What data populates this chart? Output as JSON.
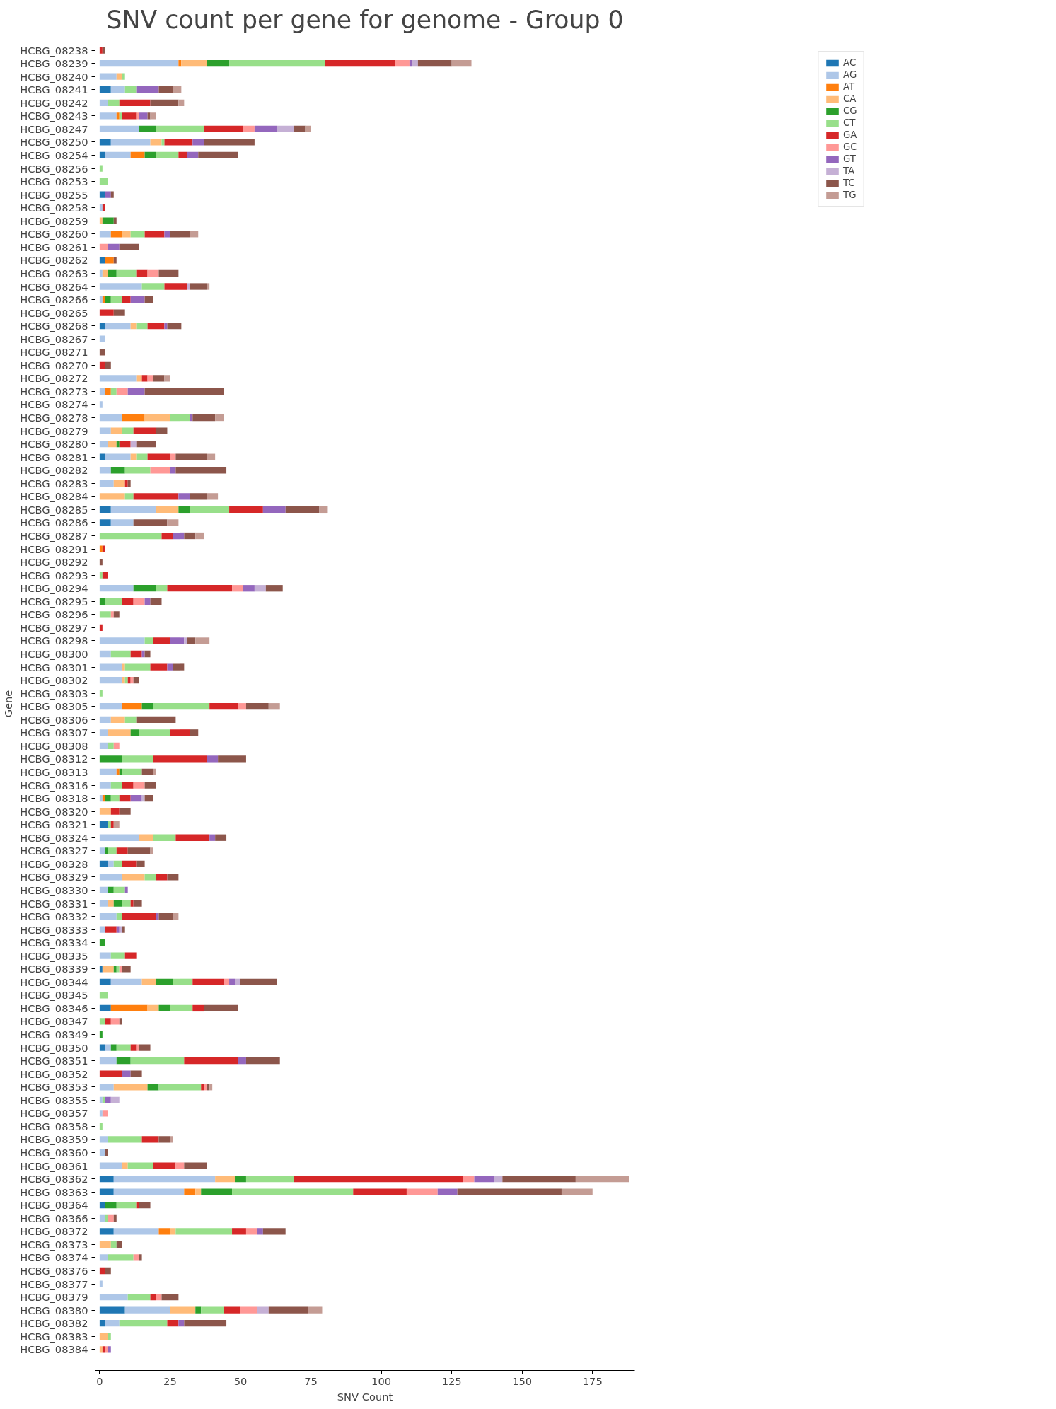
{
  "chart_data": {
    "type": "bar",
    "orientation": "horizontal",
    "stacked": true,
    "title": "SNV count per gene for genome - Group 0",
    "xlabel": "SNV Count",
    "ylabel": "Gene",
    "categories": [
      "HCBG_08238",
      "HCBG_08239",
      "HCBG_08240",
      "HCBG_08241",
      "HCBG_08242",
      "HCBG_08243",
      "HCBG_08247",
      "HCBG_08250",
      "HCBG_08254",
      "HCBG_08256",
      "HCBG_08253",
      "HCBG_08255",
      "HCBG_08258",
      "HCBG_08259",
      "HCBG_08260",
      "HCBG_08261",
      "HCBG_08262",
      "HCBG_08263",
      "HCBG_08264",
      "HCBG_08266",
      "HCBG_08265",
      "HCBG_08268",
      "HCBG_08267",
      "HCBG_08271",
      "HCBG_08270",
      "HCBG_08272",
      "HCBG_08273",
      "HCBG_08274",
      "HCBG_08278",
      "HCBG_08279",
      "HCBG_08280",
      "HCBG_08281",
      "HCBG_08282",
      "HCBG_08283",
      "HCBG_08284",
      "HCBG_08285",
      "HCBG_08286",
      "HCBG_08287",
      "HCBG_08291",
      "HCBG_08292",
      "HCBG_08293",
      "HCBG_08294",
      "HCBG_08295",
      "HCBG_08296",
      "HCBG_08297",
      "HCBG_08298",
      "HCBG_08300",
      "HCBG_08301",
      "HCBG_08302",
      "HCBG_08303",
      "HCBG_08305",
      "HCBG_08306",
      "HCBG_08307",
      "HCBG_08308",
      "HCBG_08312",
      "HCBG_08313",
      "HCBG_08316",
      "HCBG_08318",
      "HCBG_08320",
      "HCBG_08321",
      "HCBG_08324",
      "HCBG_08327",
      "HCBG_08328",
      "HCBG_08329",
      "HCBG_08330",
      "HCBG_08331",
      "HCBG_08332",
      "HCBG_08333",
      "HCBG_08334",
      "HCBG_08335",
      "HCBG_08339",
      "HCBG_08344",
      "HCBG_08345",
      "HCBG_08346",
      "HCBG_08347",
      "HCBG_08349",
      "HCBG_08350",
      "HCBG_08351",
      "HCBG_08352",
      "HCBG_08353",
      "HCBG_08355",
      "HCBG_08357",
      "HCBG_08358",
      "HCBG_08359",
      "HCBG_08360",
      "HCBG_08361",
      "HCBG_08362",
      "HCBG_08363",
      "HCBG_08364",
      "HCBG_08366",
      "HCBG_08372",
      "HCBG_08373",
      "HCBG_08374",
      "HCBG_08376",
      "HCBG_08377",
      "HCBG_08379",
      "HCBG_08380",
      "HCBG_08382",
      "HCBG_08383",
      "HCBG_08384"
    ],
    "xlim": [
      -1.6,
      190
    ],
    "xticks": [
      0,
      25,
      50,
      75,
      100,
      125,
      150,
      175
    ],
    "grid": false,
    "legend": "top right",
    "series": [
      {
        "name": "AC",
        "color": "#1f77b4",
        "values": [
          0,
          0,
          0,
          4,
          0,
          0,
          0,
          4,
          2,
          0,
          0,
          2,
          0,
          0,
          0,
          0,
          2,
          0,
          0,
          0,
          0,
          2,
          0,
          0,
          0,
          0,
          0,
          0,
          0,
          0,
          0,
          2,
          0,
          0,
          0,
          4,
          4,
          0,
          0,
          0,
          0,
          0,
          0,
          0,
          0,
          0,
          0,
          0,
          0,
          0,
          0,
          0,
          0,
          0,
          0,
          0,
          0,
          0,
          0,
          3,
          0,
          0,
          3,
          0,
          0,
          0,
          0,
          0,
          0,
          0,
          1,
          4,
          0,
          4,
          0,
          0,
          2,
          0,
          0,
          0,
          0,
          0,
          0,
          0,
          0,
          0,
          5,
          5,
          2,
          0,
          5,
          0,
          0,
          0,
          0,
          0,
          9,
          2,
          0,
          0
        ]
      },
      {
        "name": "AG",
        "color": "#aec7e8",
        "values": [
          0,
          28,
          6,
          5,
          3,
          6,
          14,
          14,
          9,
          0,
          0,
          0,
          1,
          0,
          4,
          0,
          0,
          1,
          15,
          1,
          0,
          9,
          2,
          0,
          0,
          13,
          2,
          1,
          8,
          4,
          3,
          9,
          4,
          5,
          0,
          16,
          8,
          0,
          0,
          0,
          0,
          12,
          0,
          0,
          0,
          16,
          4,
          8,
          8,
          0,
          8,
          4,
          3,
          3,
          0,
          6,
          4,
          1,
          0,
          0,
          14,
          2,
          2,
          8,
          3,
          3,
          6,
          2,
          0,
          4,
          0,
          11,
          0,
          0,
          0,
          0,
          2,
          6,
          0,
          5,
          1,
          1,
          0,
          3,
          2,
          8,
          36,
          25,
          0,
          2,
          16,
          0,
          3,
          0,
          1,
          10,
          16,
          5,
          0,
          0
        ]
      },
      {
        "name": "AT",
        "color": "#ff7f0e",
        "values": [
          0,
          1,
          0,
          0,
          0,
          1,
          0,
          0,
          5,
          0,
          0,
          0,
          0,
          0,
          4,
          0,
          3,
          0,
          0,
          1,
          0,
          0,
          0,
          0,
          0,
          0,
          2,
          0,
          8,
          0,
          0,
          0,
          0,
          0,
          0,
          0,
          0,
          0,
          1,
          0,
          0,
          0,
          0,
          0,
          0,
          0,
          0,
          0,
          0,
          0,
          7,
          0,
          0,
          0,
          0,
          1,
          0,
          1,
          0,
          0,
          0,
          0,
          0,
          0,
          0,
          0,
          0,
          0,
          0,
          0,
          0,
          0,
          0,
          13,
          0,
          0,
          0,
          0,
          0,
          0,
          0,
          0,
          0,
          0,
          0,
          0,
          0,
          4,
          0,
          0,
          4,
          0,
          0,
          0,
          0,
          0,
          0,
          0,
          0,
          0
        ]
      },
      {
        "name": "CA",
        "color": "#ffbb78",
        "values": [
          0,
          9,
          2,
          0,
          0,
          0,
          0,
          4,
          0,
          0,
          0,
          0,
          0,
          1,
          3,
          0,
          0,
          2,
          0,
          0,
          0,
          2,
          0,
          0,
          0,
          2,
          0,
          0,
          9,
          4,
          3,
          2,
          0,
          4,
          9,
          8,
          0,
          0,
          0,
          0,
          0,
          0,
          0,
          0,
          0,
          0,
          0,
          1,
          1,
          0,
          0,
          5,
          8,
          0,
          0,
          0,
          0,
          0,
          4,
          0,
          5,
          0,
          0,
          8,
          0,
          2,
          0,
          0,
          0,
          0,
          4,
          5,
          0,
          4,
          0,
          0,
          0,
          0,
          0,
          12,
          0,
          0,
          0,
          0,
          0,
          2,
          7,
          2,
          0,
          0,
          2,
          4,
          0,
          0,
          0,
          0,
          9,
          0,
          3,
          1
        ]
      },
      {
        "name": "CG",
        "color": "#2ca02c",
        "values": [
          0,
          8,
          0,
          0,
          0,
          0,
          6,
          0,
          4,
          0,
          0,
          0,
          0,
          4,
          0,
          0,
          0,
          3,
          0,
          2,
          0,
          0,
          0,
          0,
          0,
          0,
          0,
          0,
          0,
          0,
          1,
          0,
          5,
          0,
          0,
          4,
          0,
          0,
          0,
          0,
          0,
          8,
          2,
          0,
          0,
          0,
          0,
          0,
          0,
          0,
          4,
          0,
          3,
          0,
          8,
          1,
          0,
          2,
          0,
          0,
          0,
          1,
          0,
          0,
          2,
          3,
          0,
          0,
          2,
          0,
          1,
          6,
          0,
          4,
          0,
          1,
          2,
          5,
          0,
          4,
          0,
          0,
          0,
          0,
          0,
          0,
          4,
          11,
          4,
          0,
          0,
          0,
          0,
          0,
          0,
          0,
          2,
          0,
          0,
          0
        ]
      },
      {
        "name": "CT",
        "color": "#98df8a",
        "values": [
          0,
          34,
          1,
          4,
          4,
          1,
          17,
          1,
          8,
          1,
          3,
          0,
          0,
          0,
          5,
          0,
          0,
          7,
          8,
          4,
          0,
          4,
          0,
          0,
          0,
          0,
          2,
          0,
          7,
          4,
          0,
          4,
          9,
          0,
          3,
          14,
          0,
          22,
          0,
          0,
          1,
          4,
          6,
          4,
          0,
          3,
          7,
          9,
          1,
          1,
          20,
          4,
          11,
          2,
          11,
          7,
          4,
          3,
          0,
          1,
          8,
          3,
          3,
          4,
          4,
          3,
          2,
          0,
          0,
          5,
          1,
          7,
          3,
          8,
          2,
          0,
          5,
          19,
          0,
          15,
          1,
          0,
          1,
          12,
          0,
          9,
          17,
          43,
          7,
          1,
          20,
          2,
          9,
          0,
          0,
          8,
          8,
          17,
          1,
          0
        ]
      },
      {
        "name": "GA",
        "color": "#d62728",
        "values": [
          1,
          25,
          0,
          0,
          11,
          5,
          14,
          10,
          3,
          0,
          0,
          0,
          1,
          0,
          7,
          0,
          0,
          4,
          8,
          3,
          5,
          6,
          0,
          0,
          2,
          2,
          0,
          0,
          0,
          8,
          4,
          8,
          0,
          1,
          16,
          12,
          0,
          4,
          1,
          0,
          2,
          23,
          4,
          0,
          1,
          6,
          4,
          6,
          1,
          0,
          10,
          0,
          7,
          0,
          19,
          0,
          4,
          4,
          3,
          1,
          12,
          4,
          5,
          4,
          0,
          1,
          12,
          4,
          0,
          4,
          0,
          11,
          0,
          4,
          2,
          0,
          2,
          19,
          8,
          1,
          0,
          0,
          0,
          6,
          0,
          8,
          60,
          19,
          1,
          0,
          5,
          0,
          0,
          2,
          0,
          2,
          6,
          4,
          0,
          1
        ]
      },
      {
        "name": "GC",
        "color": "#ff9896",
        "values": [
          0,
          5,
          0,
          0,
          0,
          1,
          4,
          0,
          0,
          0,
          0,
          0,
          0,
          0,
          0,
          3,
          0,
          4,
          0,
          0,
          0,
          0,
          0,
          0,
          0,
          2,
          4,
          0,
          0,
          0,
          0,
          2,
          7,
          0,
          0,
          0,
          0,
          0,
          0,
          0,
          0,
          4,
          4,
          1,
          0,
          0,
          0,
          0,
          1,
          0,
          3,
          0,
          0,
          2,
          0,
          0,
          4,
          0,
          0,
          0,
          0,
          0,
          0,
          0,
          0,
          0,
          0,
          0,
          0,
          0,
          1,
          2,
          0,
          0,
          3,
          0,
          1,
          0,
          0,
          1,
          0,
          2,
          0,
          0,
          0,
          3,
          4,
          11,
          0,
          2,
          4,
          0,
          2,
          0,
          0,
          2,
          6,
          0,
          0,
          1
        ]
      },
      {
        "name": "GT",
        "color": "#9467bd",
        "values": [
          0,
          1,
          0,
          8,
          0,
          3,
          8,
          4,
          4,
          0,
          0,
          2,
          0,
          0,
          2,
          4,
          0,
          0,
          0,
          5,
          0,
          1,
          0,
          0,
          0,
          0,
          6,
          0,
          1,
          0,
          0,
          0,
          2,
          0,
          4,
          8,
          0,
          4,
          0,
          0,
          0,
          4,
          2,
          0,
          0,
          5,
          1,
          2,
          0,
          0,
          0,
          0,
          0,
          0,
          4,
          0,
          0,
          4,
          0,
          0,
          2,
          0,
          0,
          0,
          1,
          0,
          1,
          1,
          0,
          0,
          0,
          2,
          0,
          0,
          0,
          0,
          0,
          3,
          3,
          0,
          2,
          0,
          0,
          0,
          0,
          0,
          7,
          7,
          0,
          0,
          2,
          0,
          0,
          0,
          0,
          0,
          0,
          2,
          0,
          1
        ]
      },
      {
        "name": "TA",
        "color": "#c5b0d5",
        "values": [
          0,
          2,
          0,
          0,
          0,
          0,
          6,
          0,
          0,
          0,
          0,
          0,
          0,
          0,
          0,
          0,
          0,
          0,
          1,
          0,
          0,
          0,
          0,
          0,
          0,
          0,
          0,
          0,
          0,
          0,
          2,
          0,
          0,
          0,
          0,
          0,
          0,
          0,
          0,
          0,
          0,
          4,
          0,
          0,
          0,
          1,
          0,
          0,
          0,
          0,
          0,
          0,
          0,
          0,
          0,
          0,
          0,
          1,
          0,
          0,
          0,
          0,
          0,
          0,
          0,
          0,
          0,
          1,
          0,
          0,
          0,
          2,
          0,
          0,
          0,
          0,
          0,
          0,
          0,
          0,
          3,
          0,
          0,
          0,
          0,
          0,
          3,
          0,
          0,
          0,
          0,
          0,
          0,
          0,
          0,
          0,
          4,
          0,
          0,
          0
        ]
      },
      {
        "name": "TC",
        "color": "#8c564b",
        "values": [
          1,
          12,
          0,
          5,
          10,
          1,
          4,
          18,
          14,
          0,
          0,
          1,
          0,
          1,
          7,
          7,
          1,
          7,
          6,
          3,
          4,
          5,
          0,
          2,
          2,
          4,
          28,
          0,
          8,
          4,
          7,
          11,
          18,
          1,
          6,
          12,
          12,
          4,
          0,
          1,
          0,
          6,
          4,
          2,
          0,
          3,
          2,
          4,
          2,
          0,
          8,
          14,
          3,
          0,
          10,
          4,
          4,
          3,
          4,
          0,
          4,
          8,
          3,
          4,
          0,
          3,
          5,
          1,
          0,
          0,
          3,
          13,
          0,
          12,
          1,
          0,
          4,
          12,
          4,
          1,
          0,
          0,
          0,
          4,
          1,
          8,
          26,
          37,
          4,
          1,
          8,
          2,
          1,
          2,
          0,
          6,
          14,
          15,
          0,
          0
        ]
      },
      {
        "name": "TG",
        "color": "#c49c94",
        "values": [
          0,
          7,
          0,
          3,
          2,
          2,
          2,
          0,
          0,
          0,
          0,
          0,
          0,
          0,
          3,
          0,
          0,
          0,
          1,
          0,
          0,
          0,
          0,
          0,
          0,
          2,
          0,
          0,
          3,
          0,
          0,
          3,
          0,
          0,
          4,
          3,
          4,
          3,
          0,
          0,
          0,
          0,
          0,
          0,
          0,
          5,
          0,
          0,
          0,
          0,
          4,
          0,
          0,
          0,
          0,
          1,
          0,
          0,
          0,
          2,
          0,
          1,
          0,
          0,
          0,
          0,
          2,
          0,
          0,
          0,
          0,
          0,
          0,
          0,
          0,
          0,
          0,
          0,
          0,
          1,
          0,
          0,
          0,
          1,
          0,
          0,
          19,
          11,
          0,
          0,
          0,
          0,
          0,
          0,
          0,
          0,
          5,
          0,
          0,
          0
        ]
      }
    ]
  }
}
